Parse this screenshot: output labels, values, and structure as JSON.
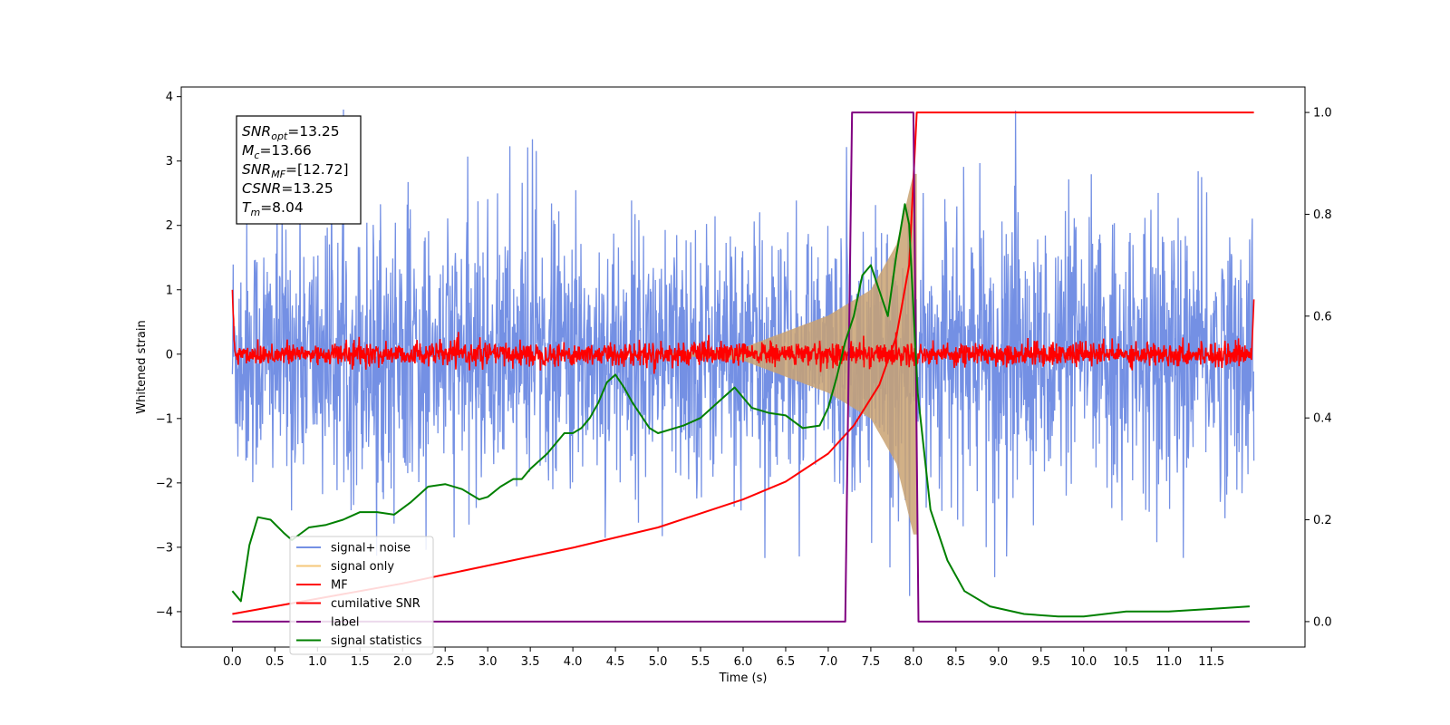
{
  "chart_data": {
    "type": "line",
    "xlabel": "Time (s)",
    "ylabel": "Whitened strain",
    "xlim": [
      -0.6,
      12.6
    ],
    "ylim_left": [
      -4.55,
      4.15
    ],
    "ylim_right": [
      -0.05,
      1.05
    ],
    "x_ticks": [
      "0.0",
      "0.5",
      "1.0",
      "1.5",
      "2.0",
      "2.5",
      "3.0",
      "3.5",
      "4.0",
      "4.5",
      "5.0",
      "5.5",
      "6.0",
      "6.5",
      "7.0",
      "7.5",
      "8.0",
      "8.5",
      "9.0",
      "9.5",
      "10.0",
      "10.5",
      "11.0",
      "11.5"
    ],
    "y_ticks_left": [
      "4",
      "3",
      "2",
      "1",
      "0",
      "−1",
      "−2",
      "−3",
      "−4"
    ],
    "y_ticks_right": [
      "1.0",
      "0.8",
      "0.6",
      "0.4",
      "0.2",
      "0.0"
    ],
    "grid": false,
    "legend_position": "lower-left",
    "infobox": [
      {
        "var": "SNR",
        "sub": "opt",
        "value": "=13.25"
      },
      {
        "var": "M",
        "sub": "c",
        "value": "=13.66"
      },
      {
        "var": "SNR",
        "sub": "MF",
        "value": "=[12.72]"
      },
      {
        "var": "CSNR",
        "sub": "",
        "value": "=13.25"
      },
      {
        "var": "T",
        "sub": "m",
        "value": "=8.04"
      }
    ],
    "series": [
      {
        "name": "signal+ noise",
        "color": "#7490e4",
        "axis": "left",
        "kind": "noise",
        "t_range": [
          0,
          12
        ],
        "amplitude": 1.0,
        "approx_range": [
          -4.15,
          3.8
        ]
      },
      {
        "name": "signal only",
        "color": "#f5c77a",
        "axis": "left",
        "kind": "chirp",
        "t_range": [
          0,
          8.04
        ],
        "envelope": [
          [
            6.0,
            0.1
          ],
          [
            7.0,
            0.6
          ],
          [
            7.5,
            1.0
          ],
          [
            7.8,
            1.7
          ],
          [
            8.0,
            2.8
          ]
        ]
      },
      {
        "name": "MF",
        "color": "#ff0000",
        "axis": "left",
        "kind": "matched-filter",
        "t_range": [
          0,
          12
        ],
        "amplitude": 0.09,
        "edges": [
          [
            0.0,
            1.0
          ],
          [
            12.0,
            0.85
          ]
        ]
      },
      {
        "name": "cumilative SNR",
        "color": "#ff0000",
        "axis": "right",
        "x": [
          0.0,
          1.0,
          2.0,
          3.0,
          4.0,
          5.0,
          6.0,
          6.5,
          7.0,
          7.3,
          7.6,
          7.8,
          7.95,
          8.04,
          8.1,
          12.0
        ],
        "y": [
          0.015,
          0.045,
          0.075,
          0.11,
          0.145,
          0.185,
          0.24,
          0.275,
          0.33,
          0.385,
          0.465,
          0.56,
          0.7,
          1.0,
          1.0,
          1.0
        ]
      },
      {
        "name": "label",
        "color": "#800080",
        "axis": "right",
        "x": [
          0.0,
          7.2,
          7.28,
          8.0,
          8.06,
          11.95
        ],
        "y": [
          0.0,
          0.0,
          1.0,
          1.0,
          0.0,
          0.0
        ]
      },
      {
        "name": "signal statistics",
        "color": "#008000",
        "axis": "right",
        "x": [
          0.0,
          0.1,
          0.2,
          0.3,
          0.45,
          0.6,
          0.7,
          0.9,
          1.1,
          1.3,
          1.5,
          1.7,
          1.9,
          2.1,
          2.3,
          2.5,
          2.7,
          2.9,
          3.0,
          3.15,
          3.3,
          3.4,
          3.5,
          3.7,
          3.9,
          4.0,
          4.1,
          4.2,
          4.3,
          4.4,
          4.5,
          4.6,
          4.7,
          4.9,
          5.0,
          5.3,
          5.5,
          5.7,
          5.9,
          6.1,
          6.3,
          6.5,
          6.7,
          6.9,
          7.0,
          7.1,
          7.2,
          7.3,
          7.4,
          7.5,
          7.6,
          7.7,
          7.8,
          7.9,
          7.95,
          8.05,
          8.2,
          8.4,
          8.6,
          8.9,
          9.3,
          9.7,
          10.0,
          10.5,
          11.0,
          11.5,
          11.95
        ],
        "y": [
          0.06,
          0.04,
          0.15,
          0.205,
          0.2,
          0.175,
          0.16,
          0.185,
          0.19,
          0.2,
          0.215,
          0.215,
          0.21,
          0.235,
          0.265,
          0.27,
          0.26,
          0.24,
          0.245,
          0.265,
          0.28,
          0.28,
          0.3,
          0.33,
          0.37,
          0.37,
          0.38,
          0.4,
          0.43,
          0.47,
          0.485,
          0.46,
          0.43,
          0.38,
          0.37,
          0.385,
          0.4,
          0.43,
          0.46,
          0.42,
          0.41,
          0.405,
          0.38,
          0.385,
          0.42,
          0.48,
          0.55,
          0.6,
          0.68,
          0.7,
          0.65,
          0.6,
          0.72,
          0.82,
          0.78,
          0.45,
          0.22,
          0.12,
          0.06,
          0.03,
          0.015,
          0.01,
          0.01,
          0.02,
          0.02,
          0.025,
          0.03
        ]
      }
    ]
  }
}
